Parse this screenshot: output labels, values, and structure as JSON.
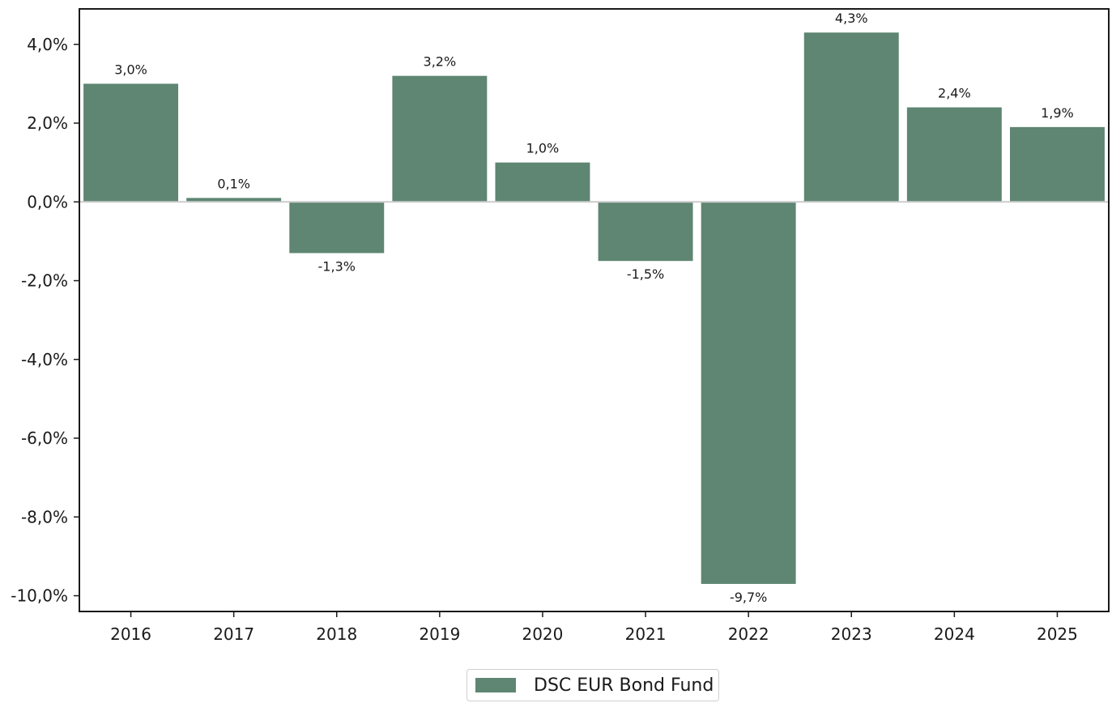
{
  "chart_data": {
    "type": "bar",
    "title": "",
    "xlabel": "",
    "ylabel": "",
    "categories": [
      "2016",
      "2017",
      "2018",
      "2019",
      "2020",
      "2021",
      "2022",
      "2023",
      "2024",
      "2025"
    ],
    "series": [
      {
        "name": "DSC EUR Bond Fund",
        "color": "#5e8672",
        "values": [
          3.0,
          0.1,
          -1.3,
          3.2,
          1.0,
          -1.5,
          -9.7,
          4.3,
          2.4,
          1.9
        ],
        "data_labels": [
          "3,0%",
          "0,1%",
          "-1,3%",
          "3,2%",
          "1,0%",
          "-1,5%",
          "-9,7%",
          "4,3%",
          "2,4%",
          "1,9%"
        ]
      }
    ],
    "ylim": [
      -10.4,
      4.9
    ],
    "y_ticks": [
      4,
      2,
      0,
      -2,
      -4,
      -6,
      -8,
      -10
    ],
    "y_tick_labels": [
      "4,0%",
      "2,0%",
      "0,0%",
      "-2,0%",
      "-4,0%",
      "-6,0%",
      "-8,0%",
      "-10,0%"
    ],
    "zero_line_color": "#cccccc",
    "grid": false,
    "legend_position": "bottom-center"
  },
  "legend": {
    "label": "DSC EUR Bond Fund",
    "color": "#5e8672"
  }
}
